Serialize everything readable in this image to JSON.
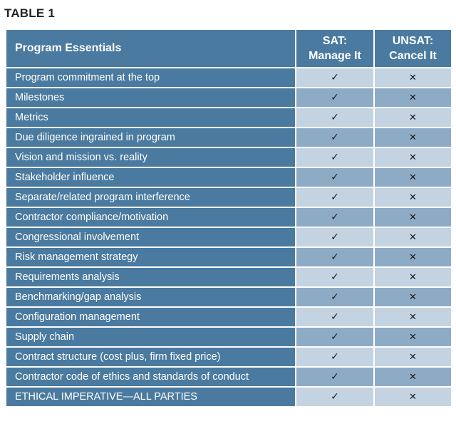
{
  "caption": "TABLE 1",
  "header": {
    "col1": "Program Essentials",
    "col2_line1": "SAT:",
    "col2_line2": "Manage It",
    "col3_line1": "UNSAT:",
    "col3_line2": "Cancel It"
  },
  "rows": [
    {
      "label": "Program commitment at the top",
      "sat": "✓",
      "unsat": "✕"
    },
    {
      "label": "Milestones",
      "sat": "✓",
      "unsat": "✕"
    },
    {
      "label": "Metrics",
      "sat": "✓",
      "unsat": "✕"
    },
    {
      "label": "Due diligence ingrained in program",
      "sat": "✓",
      "unsat": "✕"
    },
    {
      "label": "Vision and mission vs. reality",
      "sat": "✓",
      "unsat": "✕"
    },
    {
      "label": "Stakeholder influence",
      "sat": "✓",
      "unsat": "✕"
    },
    {
      "label": "Separate/related program interference",
      "sat": "✓",
      "unsat": "✕"
    },
    {
      "label": "Contractor compliance/motivation",
      "sat": "✓",
      "unsat": "✕"
    },
    {
      "label": "Congressional involvement",
      "sat": "✓",
      "unsat": "✕"
    },
    {
      "label": "Risk management strategy",
      "sat": "✓",
      "unsat": "✕"
    },
    {
      "label": "Requirements analysis",
      "sat": "✓",
      "unsat": "✕"
    },
    {
      "label": "Benchmarking/gap analysis",
      "sat": "✓",
      "unsat": "✕"
    },
    {
      "label": "Configuration management",
      "sat": "✓",
      "unsat": "✕"
    },
    {
      "label": "Supply chain",
      "sat": "✓",
      "unsat": "✕"
    },
    {
      "label": "Contract structure (cost plus, firm fixed price)",
      "sat": "✓",
      "unsat": "✕"
    },
    {
      "label": "Contractor code of ethics and standards of conduct",
      "sat": "✓",
      "unsat": "✕"
    },
    {
      "label": "ETHICAL IMPERATIVE—ALL PARTIES",
      "sat": "✓",
      "unsat": "✕"
    }
  ],
  "colors": {
    "header_bg": "#4a7a9f",
    "label_bg": "#4a7a9f",
    "cell_light": "#c3d3e2",
    "cell_dark": "#8eabc6"
  }
}
